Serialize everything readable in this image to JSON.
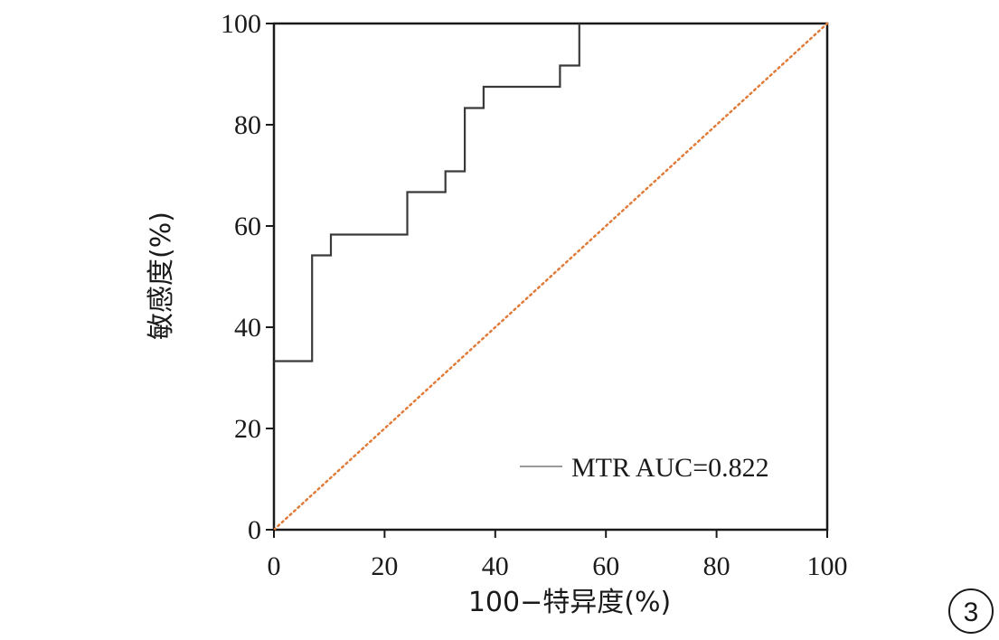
{
  "chart_data": {
    "type": "line",
    "title": "",
    "xlabel": "100−特异度(%)",
    "ylabel": "敏感度(%)",
    "xlim": [
      0,
      100
    ],
    "ylim": [
      0,
      100
    ],
    "xticks": [
      0,
      20,
      40,
      60,
      80,
      100
    ],
    "yticks": [
      0,
      20,
      40,
      60,
      80,
      100
    ],
    "grid": false,
    "legend_position": "bottom-right",
    "series": [
      {
        "name": "MTR AUC=0.822",
        "style": "step",
        "color": "#3a3a3a",
        "legend_color": "#9a9a9a",
        "points": [
          [
            0,
            33.3
          ],
          [
            6.9,
            33.3
          ],
          [
            6.9,
            54.2
          ],
          [
            10.3,
            54.2
          ],
          [
            10.3,
            58.3
          ],
          [
            24.1,
            58.3
          ],
          [
            24.1,
            66.7
          ],
          [
            31.0,
            66.7
          ],
          [
            31.0,
            70.8
          ],
          [
            34.5,
            70.8
          ],
          [
            34.5,
            83.3
          ],
          [
            37.9,
            83.3
          ],
          [
            37.9,
            87.5
          ],
          [
            51.7,
            87.5
          ],
          [
            51.7,
            91.7
          ],
          [
            55.2,
            91.7
          ],
          [
            55.2,
            100
          ]
        ]
      }
    ],
    "reference_line": {
      "points": [
        [
          0,
          0
        ],
        [
          100,
          100
        ]
      ],
      "color": "#e07b39",
      "style": "dotted"
    }
  },
  "panel_badge": "3"
}
